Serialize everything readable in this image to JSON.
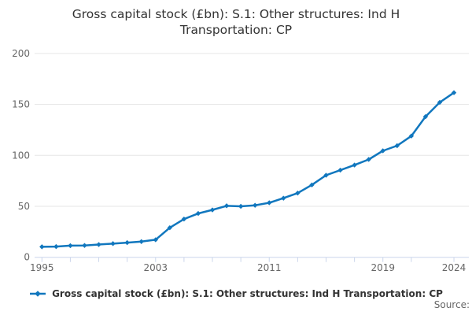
{
  "title": "Gross capital stock (£bn): S.1: Other structures: Ind H Transportation: CP",
  "legend": {
    "label": "Gross capital stock (£bn): S.1: Other structures: Ind H Transportation: CP"
  },
  "source_label": "Source:",
  "colors": {
    "line": "#1177be",
    "grid": "#e6e6e6",
    "axis": "#ccd6eb",
    "tick_label": "#666666",
    "title_text": "#333333"
  },
  "chart_data": {
    "type": "line",
    "title": "Gross capital stock (£bn): S.1: Other structures: Ind H Transportation: CP",
    "xlabel": "",
    "ylabel": "",
    "x": [
      1995,
      1996,
      1997,
      1998,
      1999,
      2000,
      2001,
      2002,
      2003,
      2004,
      2005,
      2006,
      2007,
      2008,
      2009,
      2010,
      2011,
      2012,
      2013,
      2014,
      2015,
      2016,
      2017,
      2018,
      2019,
      2020,
      2021,
      2022,
      2023,
      2024
    ],
    "series": [
      {
        "name": "Gross capital stock (£bn): S.1: Other structures: Ind H Transportation: CP",
        "values": [
          10.3,
          10.5,
          11.4,
          11.6,
          12.5,
          13.4,
          14.4,
          15.4,
          17.2,
          29.0,
          37.5,
          43.0,
          46.5,
          50.5,
          50.0,
          51.0,
          53.5,
          58.0,
          63.0,
          71.0,
          80.5,
          85.5,
          90.5,
          96.0,
          104.5,
          109.5,
          119.0,
          138.0,
          152.0,
          161.5
        ]
      }
    ],
    "ylim": [
      0,
      200
    ],
    "yticks": [
      0,
      50,
      100,
      150,
      200
    ],
    "ytick_labels": [
      "0",
      "50",
      "100",
      "150",
      "200"
    ],
    "xtick_labeled_years": [
      1995,
      2003,
      2011,
      2019,
      2024
    ],
    "xtick_labels": [
      "1995",
      "2003",
      "2011",
      "2019",
      "2024"
    ],
    "minor_xtick_years": [
      1995,
      1997,
      1999,
      2001,
      2003,
      2005,
      2007,
      2009,
      2011,
      2013,
      2015,
      2017,
      2019,
      2021,
      2024
    ],
    "grid": "horizontal",
    "marker": "diamond",
    "legend_position": "bottom"
  }
}
